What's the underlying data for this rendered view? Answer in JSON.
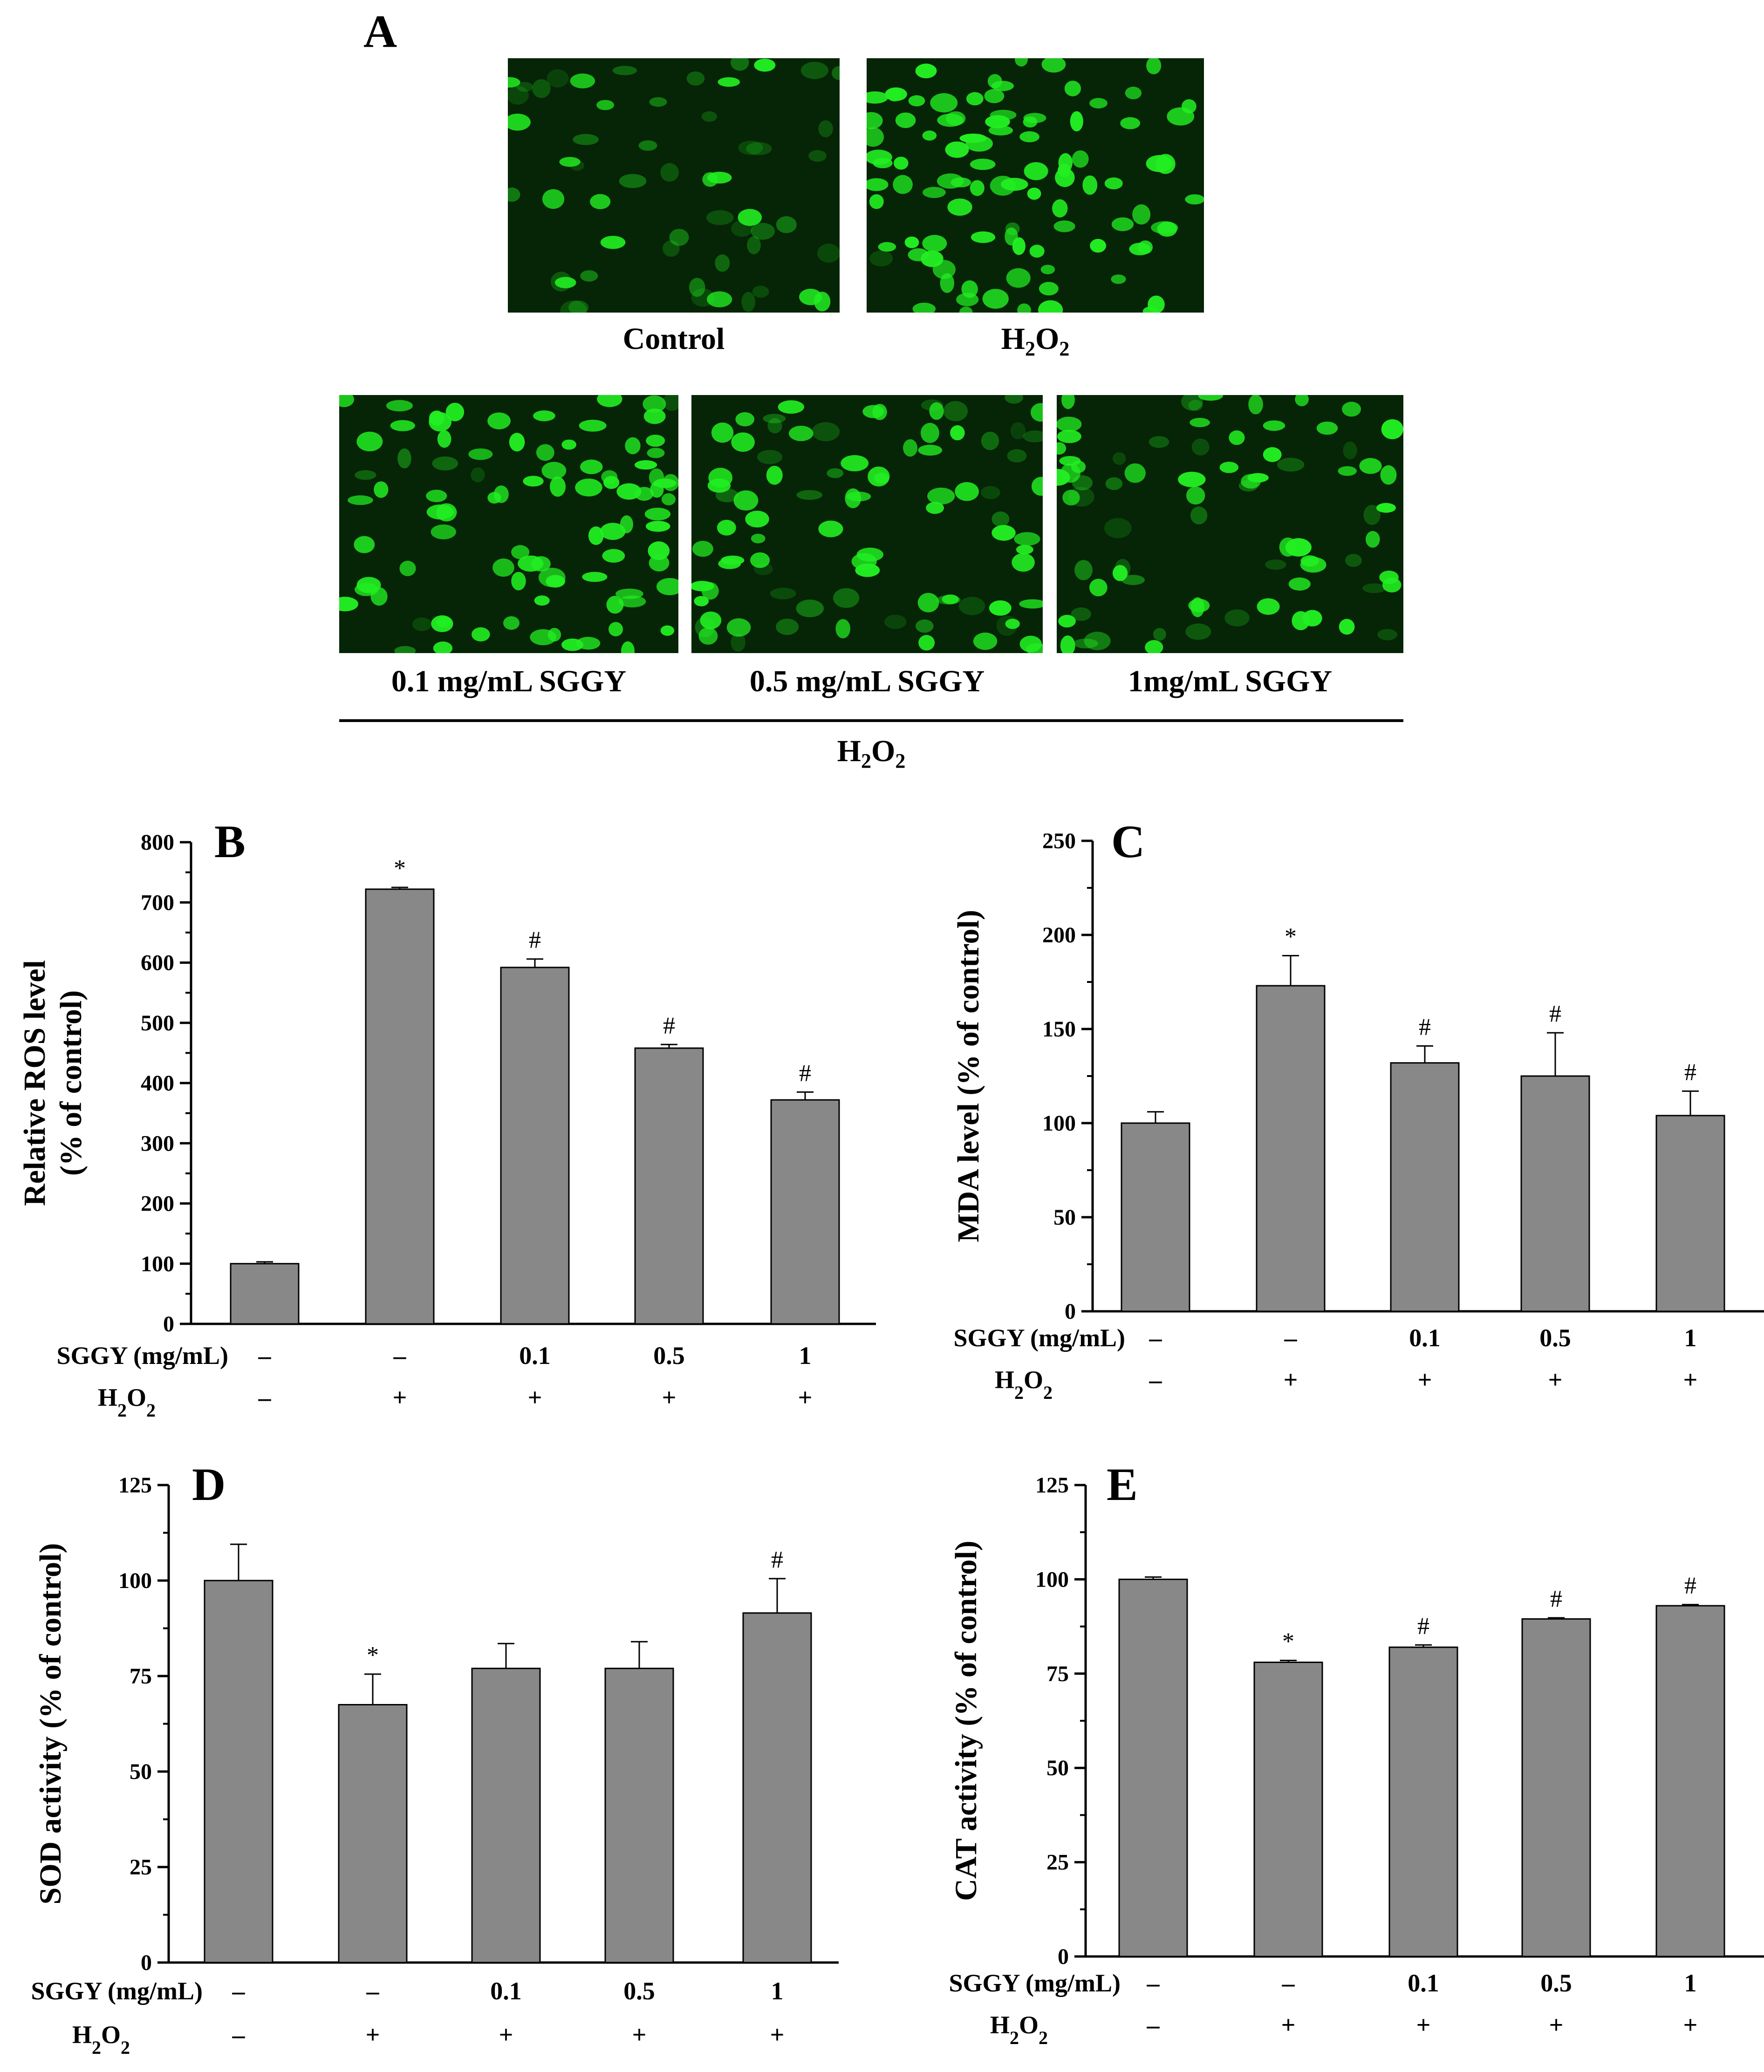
{
  "panel_a": {
    "letter": "A",
    "images": [
      {
        "label_main": "Control",
        "label_sub": "",
        "label_tail": ""
      },
      {
        "label_main": "H",
        "label_sub": "2",
        "label_tail": "O",
        "label_sub2": "2"
      },
      {
        "label_main": "0.1 mg/mL SGGY"
      },
      {
        "label_main": "0.5 mg/mL SGGY"
      },
      {
        "label_main": "1mg/mL SGGY"
      }
    ],
    "group_label": {
      "main": "H",
      "sub": "2",
      "tail": "O",
      "sub2": "2"
    },
    "fluorescence_color": "#22ee22"
  },
  "chart_data": [
    {
      "panel": "B",
      "type": "bar",
      "ylabel": [
        "Relative ROS level",
        "(% of control)"
      ],
      "ylim": [
        0,
        800
      ],
      "yticks": [
        0,
        100,
        200,
        300,
        400,
        500,
        600,
        700,
        800
      ],
      "values": [
        100,
        722,
        592,
        458,
        372
      ],
      "errors": [
        3,
        3,
        14,
        6,
        13
      ],
      "marks": [
        "",
        "*",
        "#",
        "#",
        "#"
      ],
      "rows": [
        {
          "label": "SGGY (mg/mL)",
          "values": [
            "–",
            "–",
            "0.1",
            "0.5",
            "1"
          ]
        },
        {
          "label": "H2O2",
          "values": [
            "–",
            "+",
            "+",
            "+",
            "+"
          ]
        }
      ],
      "bar_color": "#888888"
    },
    {
      "panel": "C",
      "type": "bar",
      "ylabel": [
        "MDA level (% of control)"
      ],
      "ylim": [
        0,
        250
      ],
      "yticks": [
        0,
        50,
        100,
        150,
        200,
        250
      ],
      "values": [
        100,
        173,
        132,
        125,
        104
      ],
      "errors": [
        6,
        16,
        9,
        23,
        13
      ],
      "marks": [
        "",
        "*",
        "#",
        "#",
        "#"
      ],
      "rows": [
        {
          "label": "SGGY (mg/mL)",
          "values": [
            "–",
            "–",
            "0.1",
            "0.5",
            "1"
          ]
        },
        {
          "label": "H2O2",
          "values": [
            "–",
            "+",
            "+",
            "+",
            "+"
          ]
        }
      ],
      "bar_color": "#888888"
    },
    {
      "panel": "D",
      "type": "bar",
      "ylabel": [
        "SOD activity (% of control)"
      ],
      "ylim": [
        0,
        125
      ],
      "yticks": [
        0,
        25,
        50,
        75,
        100,
        125
      ],
      "values": [
        100,
        67.5,
        77,
        77,
        91.5
      ],
      "errors": [
        9.5,
        8,
        6.5,
        7,
        9
      ],
      "marks": [
        "",
        "*",
        "",
        "",
        "#"
      ],
      "rows": [
        {
          "label": "SGGY (mg/mL)",
          "values": [
            "–",
            "–",
            "0.1",
            "0.5",
            "1"
          ]
        },
        {
          "label": "H2O2",
          "values": [
            "–",
            "+",
            "+",
            "+",
            "+"
          ]
        }
      ],
      "bar_color": "#888888"
    },
    {
      "panel": "E",
      "type": "bar",
      "ylabel": [
        "CAT activity (% of control)"
      ],
      "ylim": [
        0,
        125
      ],
      "yticks": [
        0,
        25,
        50,
        75,
        100,
        125
      ],
      "values": [
        100,
        78,
        82,
        89.5,
        93
      ],
      "errors": [
        0.6,
        0.5,
        0.6,
        0.3,
        0.3
      ],
      "marks": [
        "",
        "*",
        "#",
        "#",
        "#"
      ],
      "rows": [
        {
          "label": "SGGY (mg/mL)",
          "values": [
            "–",
            "–",
            "0.1",
            "0.5",
            "1"
          ]
        },
        {
          "label": "H2O2",
          "values": [
            "–",
            "+",
            "+",
            "+",
            "+"
          ]
        }
      ],
      "bar_color": "#888888"
    }
  ]
}
